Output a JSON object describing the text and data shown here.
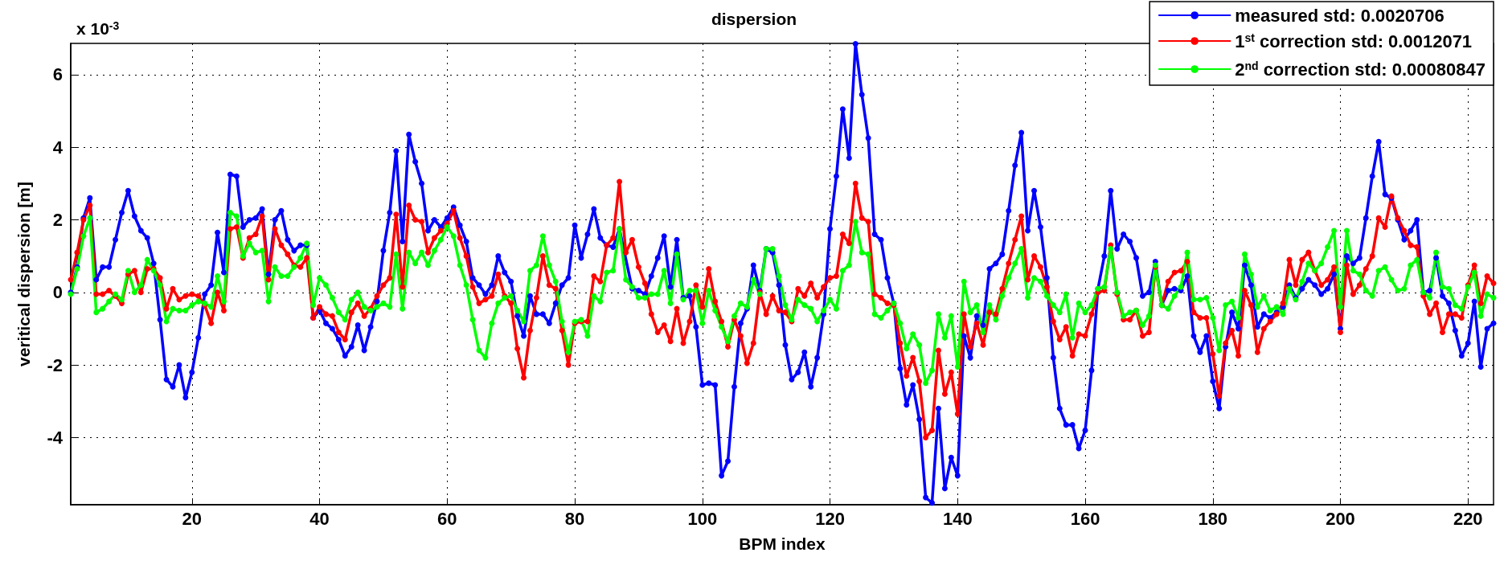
{
  "chart_data": {
    "type": "line",
    "title": "dispersion",
    "xlabel": "BPM index",
    "ylabel": "veritical dispersion [m]",
    "annotations": [
      "x 10$^{-3}$"
    ],
    "xlim": [
      1,
      224
    ],
    "xticks": [
      20,
      40,
      60,
      80,
      100,
      120,
      140,
      160,
      180,
      200,
      220
    ],
    "ylim": [
      -5.85,
      6.86
    ],
    "yticks": [
      -4,
      -2,
      0,
      2,
      4,
      6
    ],
    "grid": true,
    "legend": "top right",
    "marker": "circle",
    "line_style": "solid",
    "x": [
      1,
      2,
      3,
      4,
      5,
      6,
      7,
      8,
      9,
      10,
      11,
      12,
      13,
      14,
      15,
      16,
      17,
      18,
      19,
      20,
      21,
      22,
      23,
      24,
      25,
      26,
      27,
      28,
      29,
      30,
      31,
      32,
      33,
      34,
      35,
      36,
      37,
      38,
      39,
      40,
      41,
      42,
      43,
      44,
      45,
      46,
      47,
      48,
      49,
      50,
      51,
      52,
      53,
      54,
      55,
      56,
      57,
      58,
      59,
      60,
      61,
      62,
      63,
      64,
      65,
      66,
      67,
      68,
      69,
      70,
      71,
      72,
      73,
      74,
      75,
      76,
      77,
      78,
      79,
      80,
      81,
      82,
      83,
      84,
      85,
      86,
      87,
      88,
      89,
      90,
      91,
      92,
      93,
      94,
      95,
      96,
      97,
      98,
      99,
      100,
      101,
      102,
      103,
      104,
      105,
      106,
      107,
      108,
      109,
      110,
      111,
      112,
      113,
      114,
      115,
      116,
      117,
      118,
      119,
      120,
      121,
      122,
      123,
      124,
      125,
      126,
      127,
      128,
      129,
      130,
      131,
      132,
      133,
      134,
      135,
      136,
      137,
      138,
      139,
      140,
      141,
      142,
      143,
      144,
      145,
      146,
      147,
      148,
      149,
      150,
      151,
      152,
      153,
      154,
      155,
      156,
      157,
      158,
      159,
      160,
      161,
      162,
      163,
      164,
      165,
      166,
      167,
      168,
      169,
      170,
      171,
      172,
      173,
      174,
      175,
      176,
      177,
      178,
      179,
      180,
      181,
      182,
      183,
      184,
      185,
      186,
      187,
      188,
      189,
      190,
      191,
      192,
      193,
      194,
      195,
      196,
      197,
      198,
      199,
      200,
      201,
      202,
      203,
      204,
      205,
      206,
      207,
      208,
      209,
      210,
      211,
      212,
      213,
      214,
      215,
      216,
      217,
      218,
      219,
      220,
      221,
      222,
      223,
      224
    ],
    "series": [
      {
        "name": "measured std: 0.0020706",
        "color": "#0000ff",
        "values": [
          0,
          0.7,
          2.05,
          2.6,
          0.35,
          0.7,
          0.7,
          1.45,
          2.2,
          2.8,
          2.1,
          1.7,
          1.5,
          0.8,
          -0.75,
          -2.4,
          -2.6,
          -2.0,
          -2.9,
          -2.2,
          -1.25,
          -0.05,
          0.2,
          1.65,
          0.55,
          3.25,
          3.2,
          1.8,
          2.0,
          2.05,
          2.3,
          0.5,
          2.0,
          2.25,
          1.45,
          1.15,
          1.3,
          1.3,
          -0.7,
          -0.5,
          -0.85,
          -1.0,
          -1.3,
          -1.75,
          -1.5,
          -0.9,
          -1.6,
          -0.95,
          -0.25,
          1.15,
          2.2,
          3.9,
          1.4,
          4.35,
          3.6,
          3.0,
          1.7,
          2.0,
          1.8,
          2.05,
          2.35,
          1.85,
          1.4,
          0.4,
          0.2,
          -0.05,
          0.2,
          1.0,
          0.55,
          0.3,
          -0.65,
          -1.2,
          -0.1,
          -0.6,
          -0.6,
          -0.85,
          -0.3,
          0.2,
          0.4,
          1.85,
          0.95,
          1.6,
          2.3,
          1.5,
          1.3,
          1.25,
          1.75,
          null,
          0.1,
          0.05,
          -0.05,
          0.45,
          0.95,
          1.55,
          0.15,
          1.45,
          -0.15,
          -0.1,
          -0.95,
          -2.55,
          -2.5,
          -2.55,
          -5.05,
          -4.65,
          -2.6,
          -0.85,
          -0.45,
          0.75,
          0.05,
          1.2,
          1.1,
          0.2,
          -1.45,
          -2.4,
          -2.2,
          -1.65,
          -2.6,
          -1.8,
          -0.6,
          1.75,
          3.2,
          5.05,
          3.7,
          6.85,
          5.45,
          4.25,
          1.6,
          1.45,
          0.4,
          -0.3,
          -2.1,
          -3.1,
          -2.55,
          -3.5,
          -5.65,
          -5.8,
          -3.2,
          -5.4,
          -4.55,
          -5.05,
          -1.2,
          -1.8,
          -0.65,
          -0.9,
          0.65,
          0.8,
          1.05,
          2.25,
          3.5,
          4.4,
          1.7,
          2.8,
          1.8,
          0.4,
          -1.8,
          -3.2,
          -3.65,
          -3.65,
          -4.3,
          -3.8,
          -2.15,
          0.1,
          1.0,
          2.8,
          1.2,
          1.6,
          1.4,
          0.95,
          -0.1,
          0,
          0.85,
          -0.35,
          0.05,
          0.1,
          0.05,
          0.45,
          -1.2,
          -1.65,
          -1.2,
          -2.45,
          -3.2,
          -1.5,
          -0.55,
          -1.0,
          0.75,
          0.2,
          -0.95,
          -0.6,
          -0.7,
          -0.55,
          -0.4,
          0.2,
          -0.15,
          0.1,
          0.35,
          0.2,
          -0.05,
          0.1,
          0.5,
          -1.0,
          1.0,
          0.8,
          0.95,
          2.05,
          3.2,
          4.15,
          2.7,
          2.6,
          2.0,
          1.45,
          1.7,
          2.0,
          0,
          0.05,
          0.95,
          -0.1,
          -0.3,
          -1.05,
          -1.75,
          -1.4,
          -0.25,
          -2.05,
          -1.0,
          -0.85
        ]
      },
      {
        "name": "1$^{st}$ correction std: 0.0012071",
        "color": "#ff0000",
        "values": [
          0.35,
          1.1,
          2.0,
          2.4,
          -0.05,
          -0.05,
          0.05,
          -0.1,
          -0.3,
          0.5,
          0.6,
          0,
          0.65,
          0.65,
          0.4,
          -0.45,
          0.1,
          -0.2,
          -0.1,
          -0.05,
          -0.1,
          -0.35,
          -0.85,
          0,
          -0.5,
          1.75,
          1.8,
          0.95,
          1.5,
          1.6,
          2.1,
          0.35,
          1.75,
          1.3,
          1.05,
          0.75,
          0.7,
          0.95,
          -0.7,
          -0.4,
          -0.6,
          -0.65,
          -1.1,
          -1.3,
          -0.55,
          -0.3,
          -0.65,
          -0.45,
          -0.1,
          0.2,
          0.4,
          2.15,
          0.15,
          2.4,
          2.0,
          1.95,
          1.1,
          1.5,
          1.7,
          1.9,
          2.25,
          1.5,
          1.0,
          0.15,
          -0.3,
          -0.2,
          -0.1,
          0.5,
          -0.1,
          -0.3,
          -1.55,
          -2.35,
          -1.05,
          -0.15,
          1.0,
          0.2,
          0.1,
          -1.05,
          -2.0,
          -0.85,
          -0.8,
          -0.8,
          0.45,
          0.3,
          1.3,
          1.5,
          3.05,
          1.1,
          1.45,
          0.7,
          0.25,
          -0.6,
          -1.1,
          -0.9,
          -1.35,
          -0.45,
          -1.4,
          -0.8,
          0.2,
          -0.4,
          0.65,
          -0.25,
          -0.8,
          -1.5,
          -0.75,
          -1.2,
          -1.95,
          -1.4,
          0,
          -0.6,
          -0.1,
          -0.5,
          -0.55,
          -0.8,
          0.1,
          -0.1,
          0.25,
          -0.15,
          0.15,
          0.4,
          0.45,
          1.6,
          1.35,
          3.0,
          2.05,
          1.95,
          -0.05,
          -0.15,
          -0.3,
          -0.35,
          -1.4,
          -2.3,
          -1.8,
          -2.45,
          -4.0,
          -3.8,
          -1.6,
          -2.8,
          -2.2,
          -3.35,
          -0.6,
          -1.5,
          -0.85,
          -1.45,
          -0.55,
          -0.6,
          0.1,
          0.8,
          1.45,
          2.1,
          0.35,
          1.0,
          0.7,
          0.15,
          -0.8,
          -1.3,
          -0.95,
          -1.75,
          -1.15,
          -1.2,
          -0.6,
          0,
          0.05,
          1.3,
          -0.05,
          -0.75,
          -0.75,
          -0.5,
          -1.2,
          -1.1,
          0.7,
          -0.35,
          0.3,
          0.55,
          0.6,
          0.85,
          -0.55,
          -0.7,
          -0.7,
          -1.7,
          -2.85,
          -1.4,
          -1.05,
          -1.75,
          0.05,
          -0.35,
          -1.65,
          -1.0,
          -0.8,
          -0.6,
          -0.3,
          0.9,
          0.2,
          0.9,
          1.1,
          0.6,
          0.2,
          0.35,
          0.7,
          -1.1,
          0.75,
          -0.05,
          0.2,
          0.65,
          1.0,
          2.05,
          1.8,
          2.65,
          2.05,
          1.7,
          1.3,
          1.25,
          -0.1,
          -0.6,
          -0.3,
          -1.1,
          -0.6,
          -0.6,
          -0.7,
          0.2,
          0.75,
          -0.3,
          0.45,
          0.25
        ]
      },
      {
        "name": "2$^{nd}$ correction std: 0.00080847",
        "color": "#00ff00",
        "values": [
          -0.05,
          0.65,
          1.55,
          2.05,
          -0.55,
          -0.45,
          -0.25,
          -0.05,
          -0.2,
          0.6,
          0,
          0.2,
          0.9,
          0.6,
          0.2,
          -0.8,
          -0.45,
          -0.5,
          -0.5,
          -0.35,
          -0.25,
          -0.3,
          -0.4,
          0.45,
          -0.25,
          2.2,
          2.1,
          1.0,
          1.35,
          1.1,
          1.15,
          -0.25,
          0.7,
          0.45,
          0.45,
          0.7,
          0.95,
          1.35,
          -0.35,
          0.4,
          0.2,
          -0.15,
          -0.55,
          -0.75,
          -0.2,
          0,
          -0.4,
          -0.5,
          -0.4,
          -0.3,
          -0.4,
          1.05,
          -0.45,
          1.1,
          0.8,
          1.1,
          0.75,
          1.15,
          1.45,
          1.8,
          1.55,
          0.75,
          0.2,
          -0.75,
          -1.6,
          -1.8,
          -0.85,
          -0.3,
          -0.15,
          -0.1,
          -0.5,
          -0.8,
          0.6,
          0.75,
          1.55,
          0.75,
          0.3,
          -0.8,
          -1.65,
          -0.8,
          -0.75,
          -1.2,
          -0.1,
          -0.25,
          0.55,
          0.6,
          1.75,
          0.35,
          0.15,
          -0.15,
          -0.15,
          -0.05,
          -0.05,
          0.6,
          -0.3,
          1.05,
          -0.2,
          0.05,
          0.05,
          -0.85,
          0.05,
          -0.5,
          -0.95,
          -1.35,
          -0.65,
          -0.3,
          -0.4,
          0.35,
          -0.05,
          1.2,
          1.2,
          0.45,
          -0.35,
          -0.75,
          -0.2,
          -0.35,
          -0.45,
          -0.8,
          -0.5,
          -0.2,
          -0.45,
          0.6,
          0.75,
          1.95,
          1.1,
          1.05,
          -0.6,
          -0.7,
          -0.5,
          -0.3,
          -0.85,
          -1.55,
          -1.15,
          -1.45,
          -2.5,
          -2.15,
          -0.6,
          -1.25,
          -0.65,
          -2.05,
          0.3,
          -0.55,
          -0.35,
          -1.1,
          -0.35,
          -0.75,
          -0.1,
          0.4,
          0.8,
          1.2,
          -0.15,
          0.4,
          0.3,
          -0.1,
          -0.35,
          -0.55,
          -0.05,
          -1.25,
          -0.3,
          -0.55,
          -0.35,
          0.1,
          0.15,
          1.2,
          0,
          -0.65,
          -0.55,
          -0.5,
          -0.9,
          -0.65,
          0.75,
          -0.35,
          -0.45,
          -0.1,
          0.15,
          1.1,
          -0.2,
          -0.2,
          -0.15,
          -0.7,
          -1.6,
          -0.35,
          -0.25,
          -0.7,
          1.05,
          0.5,
          -0.4,
          -0.1,
          -0.5,
          -0.4,
          -0.6,
          0.1,
          -0.2,
          0.3,
          0.8,
          0.6,
          0.8,
          1.25,
          1.7,
          -0.4,
          1.7,
          0.6,
          0.5,
          0.05,
          -0.1,
          0.6,
          0.7,
          0.35,
          0.05,
          0.1,
          0.75,
          0.9,
          0,
          -0.15,
          1.1,
          0.15,
          0.1,
          -0.35,
          -0.45,
          0.15,
          0.55,
          -0.65,
          -0.05,
          -0.15
        ]
      }
    ]
  }
}
